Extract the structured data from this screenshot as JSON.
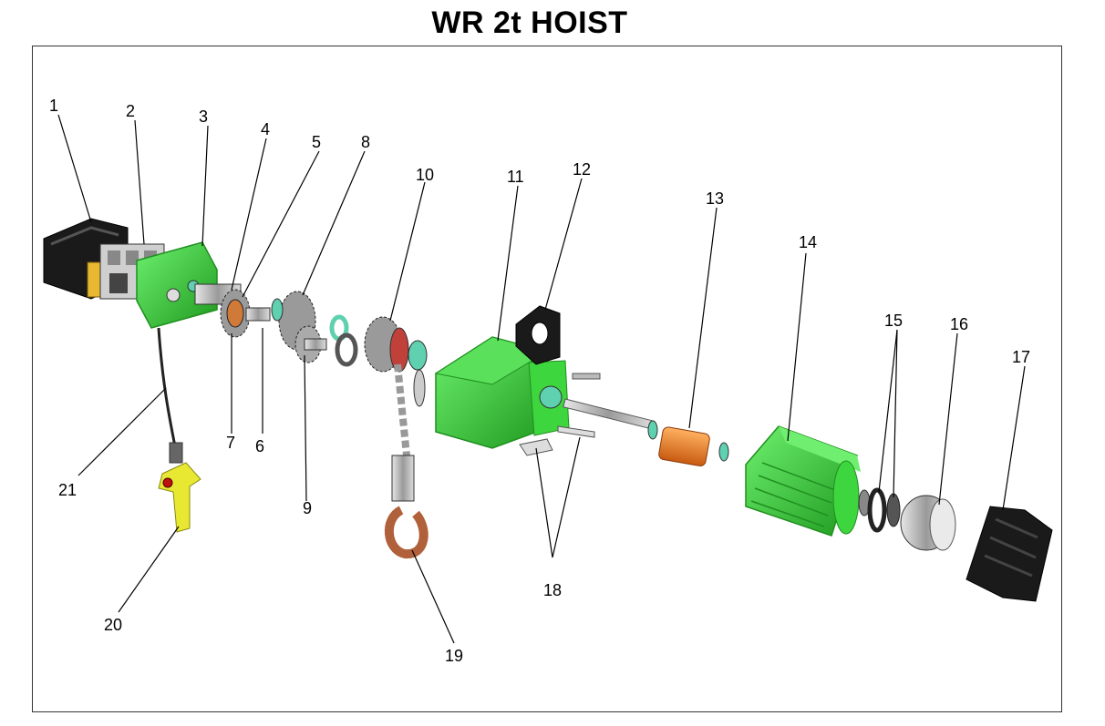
{
  "title": "WR 2t HOIST",
  "colors": {
    "housing_green": "#3ed63e",
    "green_dark": "#1f8f1f",
    "black_cover": "#1a1a1a",
    "brake_rotor_orange": "#e8781e",
    "pendant_yellow": "#e8e832",
    "hook_copper": "#b0603a",
    "steel_grey": "#b8b8b8",
    "seal_teal": "#5fd0b0"
  },
  "callouts": [
    {
      "label": "1"
    },
    {
      "label": "2"
    },
    {
      "label": "3"
    },
    {
      "label": "4"
    },
    {
      "label": "5"
    },
    {
      "label": "6"
    },
    {
      "label": "7"
    },
    {
      "label": "8"
    },
    {
      "label": "9"
    },
    {
      "label": "10"
    },
    {
      "label": "11"
    },
    {
      "label": "12"
    },
    {
      "label": "13"
    },
    {
      "label": "14"
    },
    {
      "label": "15"
    },
    {
      "label": "16"
    },
    {
      "label": "17"
    },
    {
      "label": "18"
    },
    {
      "label": "19"
    },
    {
      "label": "20"
    },
    {
      "label": "21"
    }
  ]
}
